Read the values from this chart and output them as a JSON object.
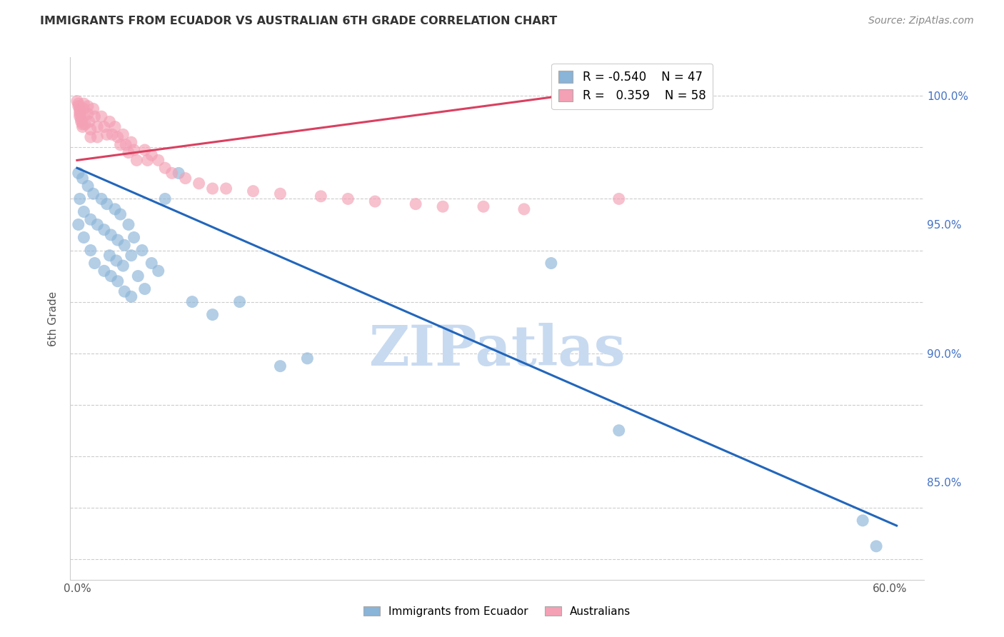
{
  "title": "IMMIGRANTS FROM ECUADOR VS AUSTRALIAN 6TH GRADE CORRELATION CHART",
  "source": "Source: ZipAtlas.com",
  "ylabel": "6th Grade",
  "xlim": [
    -0.005,
    0.625
  ],
  "ylim": [
    0.812,
    1.015
  ],
  "right_yticks": [
    "85.0%",
    "90.0%",
    "95.0%",
    "100.0%"
  ],
  "right_ytick_vals": [
    0.85,
    0.9,
    0.95,
    1.0
  ],
  "grid_color": "#cccccc",
  "background_color": "#ffffff",
  "blue_color": "#8ab4d8",
  "pink_color": "#f4a0b5",
  "blue_line_color": "#2266bb",
  "pink_line_color": "#d94060",
  "legend_R_blue": "-0.540",
  "legend_N_blue": "47",
  "legend_R_pink": "0.359",
  "legend_N_pink": "58",
  "blue_scatter_x": [
    0.001,
    0.002,
    0.001,
    0.004,
    0.005,
    0.005,
    0.008,
    0.01,
    0.01,
    0.012,
    0.015,
    0.013,
    0.018,
    0.02,
    0.02,
    0.022,
    0.025,
    0.024,
    0.025,
    0.028,
    0.03,
    0.029,
    0.03,
    0.032,
    0.035,
    0.034,
    0.035,
    0.038,
    0.04,
    0.04,
    0.042,
    0.045,
    0.048,
    0.05,
    0.055,
    0.06,
    0.065,
    0.075,
    0.085,
    0.1,
    0.12,
    0.15,
    0.17,
    0.35,
    0.4,
    0.58,
    0.59
  ],
  "blue_scatter_y": [
    0.97,
    0.96,
    0.95,
    0.968,
    0.955,
    0.945,
    0.965,
    0.952,
    0.94,
    0.962,
    0.95,
    0.935,
    0.96,
    0.948,
    0.932,
    0.958,
    0.946,
    0.938,
    0.93,
    0.956,
    0.944,
    0.936,
    0.928,
    0.954,
    0.942,
    0.934,
    0.924,
    0.95,
    0.938,
    0.922,
    0.945,
    0.93,
    0.94,
    0.925,
    0.935,
    0.932,
    0.96,
    0.97,
    0.92,
    0.915,
    0.92,
    0.895,
    0.898,
    0.935,
    0.87,
    0.835,
    0.825
  ],
  "pink_scatter_x": [
    0.0,
    0.001,
    0.001,
    0.002,
    0.002,
    0.002,
    0.002,
    0.003,
    0.003,
    0.004,
    0.004,
    0.005,
    0.005,
    0.005,
    0.006,
    0.008,
    0.008,
    0.009,
    0.01,
    0.01,
    0.012,
    0.013,
    0.015,
    0.015,
    0.018,
    0.02,
    0.022,
    0.024,
    0.026,
    0.028,
    0.03,
    0.032,
    0.034,
    0.036,
    0.038,
    0.04,
    0.042,
    0.044,
    0.05,
    0.052,
    0.055,
    0.06,
    0.065,
    0.07,
    0.08,
    0.09,
    0.1,
    0.11,
    0.13,
    0.15,
    0.18,
    0.2,
    0.22,
    0.25,
    0.27,
    0.3,
    0.33,
    0.4
  ],
  "pink_scatter_y": [
    0.998,
    0.997,
    0.996,
    0.995,
    0.994,
    0.993,
    0.992,
    0.991,
    0.99,
    0.989,
    0.988,
    0.997,
    0.995,
    0.992,
    0.989,
    0.996,
    0.993,
    0.99,
    0.987,
    0.984,
    0.995,
    0.992,
    0.988,
    0.984,
    0.992,
    0.988,
    0.985,
    0.99,
    0.985,
    0.988,
    0.984,
    0.981,
    0.985,
    0.981,
    0.978,
    0.982,
    0.979,
    0.975,
    0.979,
    0.975,
    0.977,
    0.975,
    0.972,
    0.97,
    0.968,
    0.966,
    0.964,
    0.964,
    0.963,
    0.962,
    0.961,
    0.96,
    0.959,
    0.958,
    0.957,
    0.957,
    0.956,
    0.96
  ],
  "blue_trendline_x": [
    0.0,
    0.605
  ],
  "blue_trendline_y": [
    0.972,
    0.833
  ],
  "pink_trendline_x": [
    0.0,
    0.4
  ],
  "pink_trendline_y": [
    0.975,
    1.003
  ],
  "watermark": "ZIPatlas",
  "watermark_color": "#c8daf0"
}
